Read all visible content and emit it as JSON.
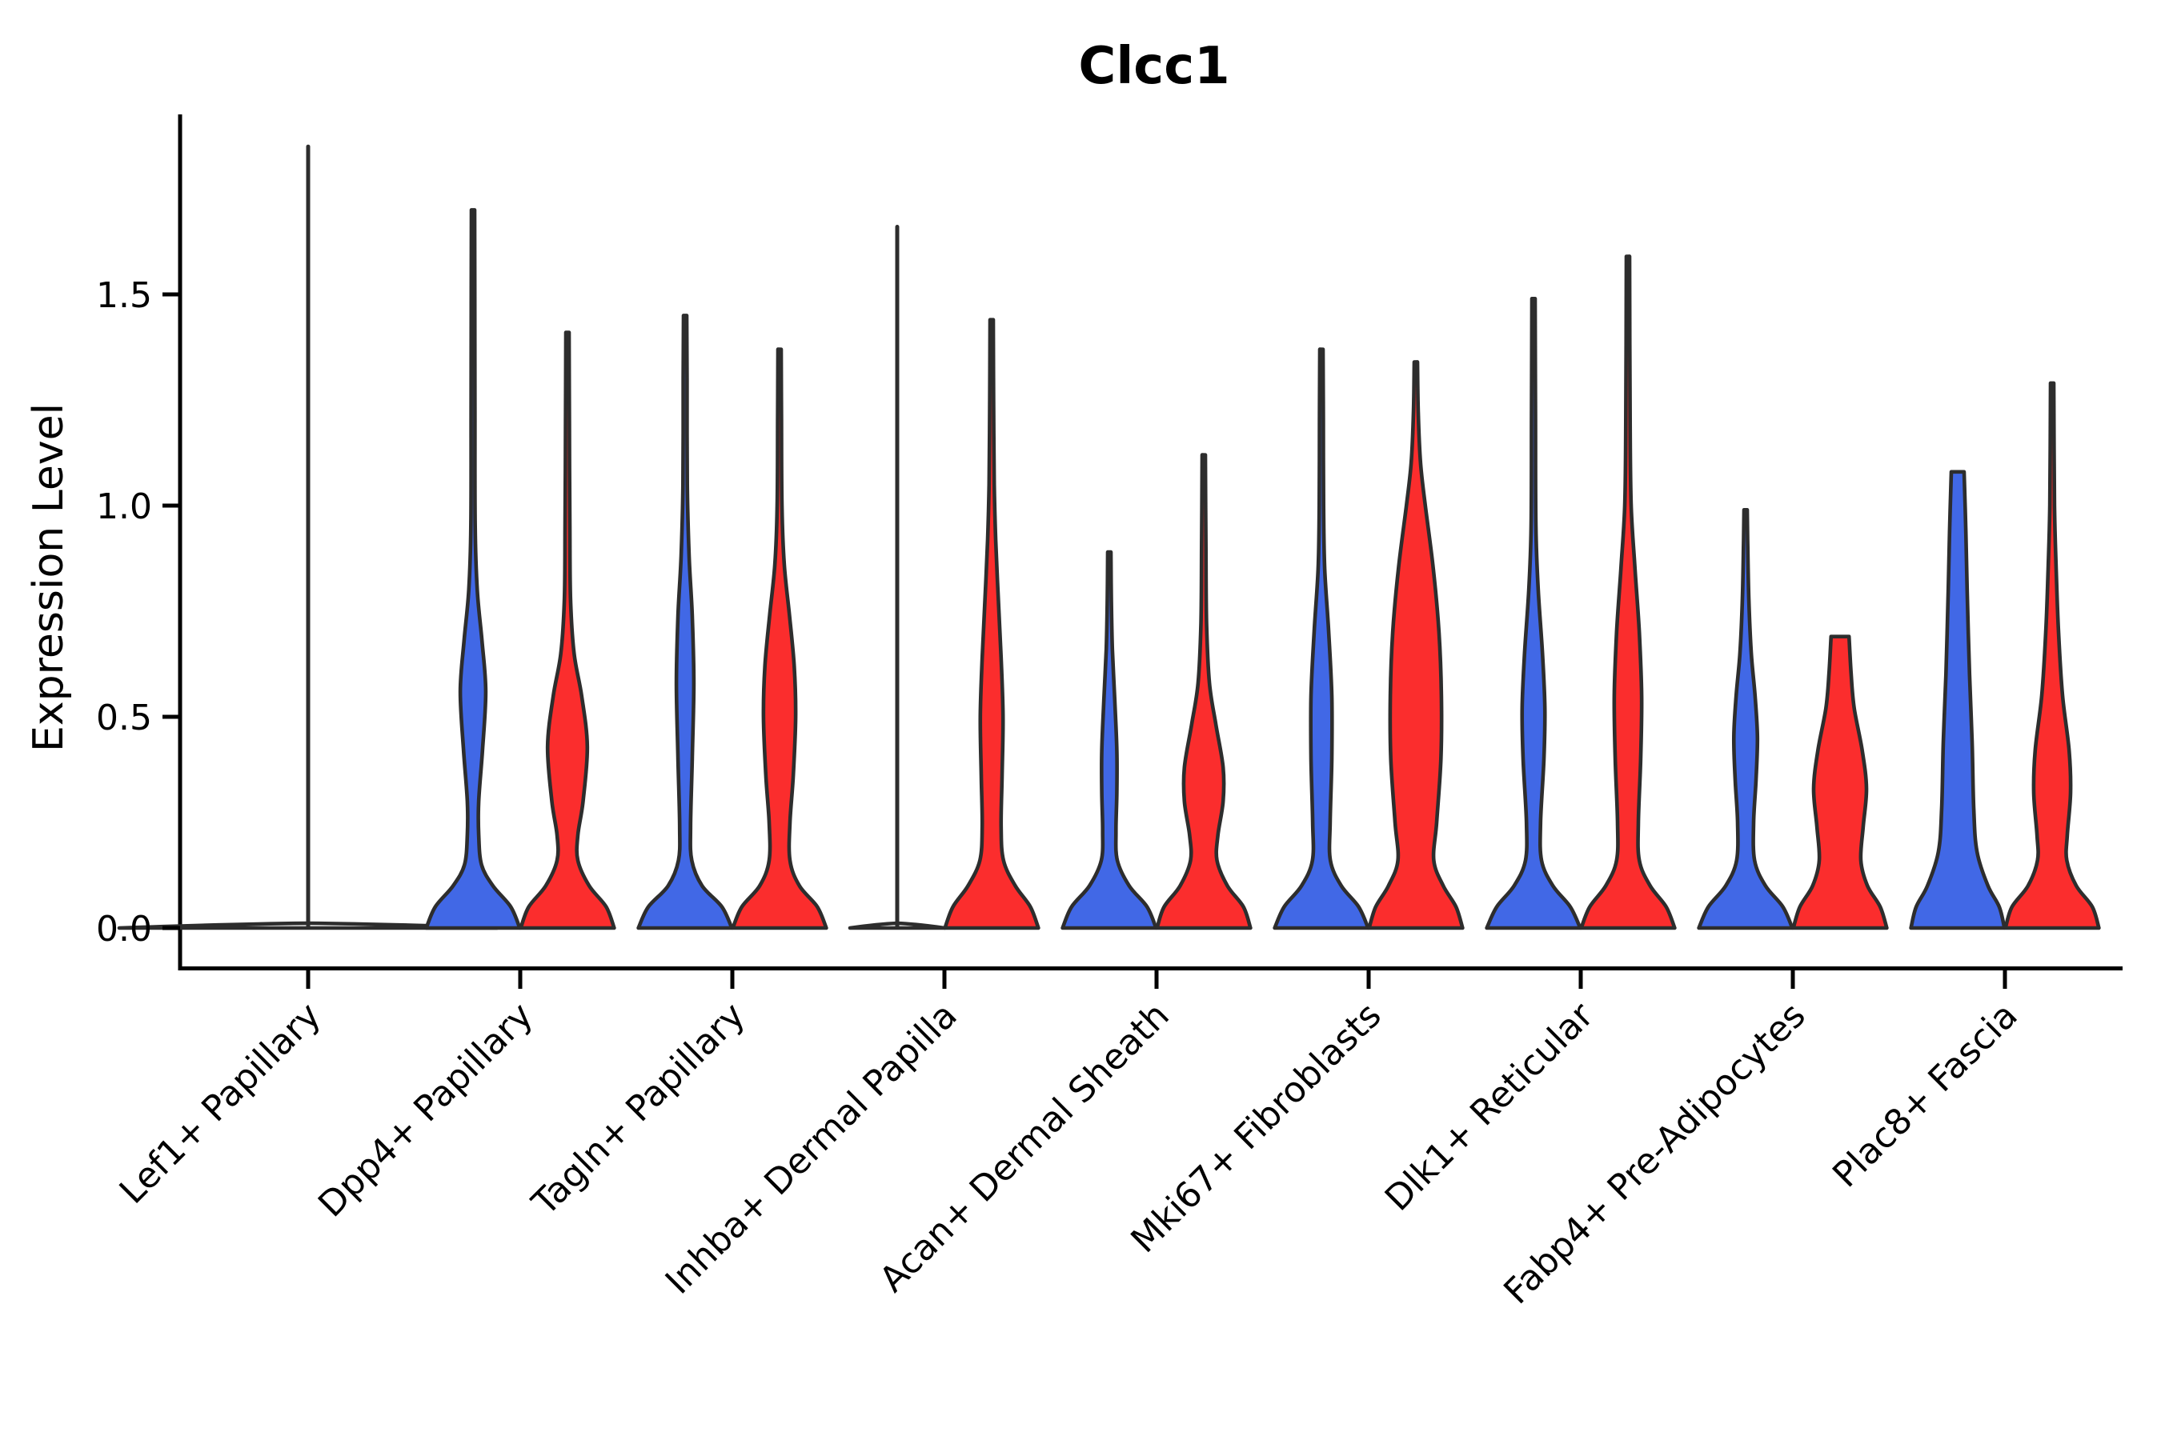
{
  "title": "Clcc1",
  "y_axis": {
    "label": "Expression Level",
    "tick_labels": [
      "0.0",
      "0.5",
      "1.0",
      "1.5"
    ]
  },
  "chart_data": {
    "type": "violin",
    "title": "Clcc1",
    "ylabel": "Expression Level",
    "xlabel": "",
    "ylim": [
      0,
      1.93
    ],
    "yticks": [
      0,
      0.5,
      1.0,
      1.5
    ],
    "grid": "off",
    "legend": "none",
    "violins_per_group": 2,
    "condition_colors": [
      "#4168E6",
      "#FB2D2D"
    ],
    "outline_color": "#2D2D2D",
    "axis_color": "#000000",
    "categories": [
      "Lef1+ Papillary",
      "Dpp4+ Papillary",
      "Tagln+ Papillary",
      "Inhba+ Dermal Papilla",
      "Acan+ Dermal Sheath",
      "Mki67+ Fibroblasts",
      "Dlk1+ Reticular",
      "Fabp4+ Pre-Adipocytes",
      "Plac8+ Fascia"
    ],
    "groups": [
      {
        "category": "Lef1+ Papillary",
        "violins": [
          {
            "fill": "none",
            "flat": true,
            "width_scale": 2.0,
            "spike_max": 1.85
          }
        ]
      },
      {
        "category": "Dpp4+ Papillary",
        "violins": [
          {
            "fill": "#4168E6",
            "max": 1.7,
            "profile": [
              [
                0,
                0.99
              ],
              [
                0.05,
                0.8
              ],
              [
                0.1,
                0.42
              ],
              [
                0.15,
                0.18
              ],
              [
                0.22,
                0.12
              ],
              [
                0.3,
                0.12
              ],
              [
                0.42,
                0.2
              ],
              [
                0.56,
                0.27
              ],
              [
                0.68,
                0.19
              ],
              [
                0.8,
                0.09
              ],
              [
                0.95,
                0.045
              ],
              [
                1.2,
                0.04
              ],
              [
                1.5,
                0.038
              ],
              [
                1.7,
                0.034
              ]
            ]
          },
          {
            "fill": "#FB2D2D",
            "max": 1.41,
            "profile": [
              [
                0,
                0.99
              ],
              [
                0.05,
                0.82
              ],
              [
                0.1,
                0.46
              ],
              [
                0.16,
                0.22
              ],
              [
                0.22,
                0.22
              ],
              [
                0.3,
                0.33
              ],
              [
                0.43,
                0.42
              ],
              [
                0.55,
                0.3
              ],
              [
                0.65,
                0.14
              ],
              [
                0.78,
                0.065
              ],
              [
                0.95,
                0.05
              ],
              [
                1.2,
                0.04
              ],
              [
                1.41,
                0.034
              ]
            ]
          }
        ]
      },
      {
        "category": "Tagln+ Papillary",
        "violins": [
          {
            "fill": "#4168E6",
            "max": 1.45,
            "profile": [
              [
                0,
                0.99
              ],
              [
                0.05,
                0.78
              ],
              [
                0.1,
                0.36
              ],
              [
                0.16,
                0.14
              ],
              [
                0.24,
                0.115
              ],
              [
                0.4,
                0.15
              ],
              [
                0.58,
                0.185
              ],
              [
                0.74,
                0.15
              ],
              [
                0.88,
                0.085
              ],
              [
                1.05,
                0.045
              ],
              [
                1.3,
                0.04
              ],
              [
                1.45,
                0.034
              ]
            ]
          },
          {
            "fill": "#FB2D2D",
            "max": 1.37,
            "profile": [
              [
                0,
                0.99
              ],
              [
                0.05,
                0.8
              ],
              [
                0.1,
                0.42
              ],
              [
                0.16,
                0.22
              ],
              [
                0.25,
                0.22
              ],
              [
                0.36,
                0.29
              ],
              [
                0.5,
                0.34
              ],
              [
                0.62,
                0.31
              ],
              [
                0.74,
                0.21
              ],
              [
                0.86,
                0.1
              ],
              [
                1.0,
                0.05
              ],
              [
                1.2,
                0.04
              ],
              [
                1.37,
                0.034
              ]
            ]
          }
        ]
      },
      {
        "category": "Inhba+ Dermal Papilla",
        "violins": [
          {
            "fill": "none",
            "flat": true,
            "width_scale": 1.0,
            "spike_max": 1.66
          },
          {
            "fill": "#FB2D2D",
            "max": 1.44,
            "profile": [
              [
                0,
                0.99
              ],
              [
                0.05,
                0.82
              ],
              [
                0.1,
                0.5
              ],
              [
                0.16,
                0.25
              ],
              [
                0.24,
                0.2
              ],
              [
                0.36,
                0.22
              ],
              [
                0.5,
                0.24
              ],
              [
                0.64,
                0.2
              ],
              [
                0.78,
                0.14
              ],
              [
                0.92,
                0.085
              ],
              [
                1.05,
                0.055
              ],
              [
                1.25,
                0.04
              ],
              [
                1.44,
                0.034
              ]
            ]
          }
        ]
      },
      {
        "category": "Acan+ Dermal Sheath",
        "violins": [
          {
            "fill": "#4168E6",
            "max": 0.89,
            "profile": [
              [
                0,
                0.99
              ],
              [
                0.05,
                0.8
              ],
              [
                0.1,
                0.42
              ],
              [
                0.16,
                0.17
              ],
              [
                0.23,
                0.14
              ],
              [
                0.32,
                0.16
              ],
              [
                0.42,
                0.16
              ],
              [
                0.54,
                0.115
              ],
              [
                0.66,
                0.065
              ],
              [
                0.78,
                0.042
              ],
              [
                0.89,
                0.034
              ]
            ]
          },
          {
            "fill": "#FB2D2D",
            "max": 1.12,
            "profile": [
              [
                0,
                0.99
              ],
              [
                0.05,
                0.84
              ],
              [
                0.1,
                0.5
              ],
              [
                0.16,
                0.28
              ],
              [
                0.22,
                0.3
              ],
              [
                0.3,
                0.41
              ],
              [
                0.38,
                0.41
              ],
              [
                0.48,
                0.26
              ],
              [
                0.58,
                0.12
              ],
              [
                0.72,
                0.06
              ],
              [
                0.9,
                0.045
              ],
              [
                1.12,
                0.034
              ]
            ]
          }
        ]
      },
      {
        "category": "Mki67+ Fibroblasts",
        "violins": [
          {
            "fill": "#4168E6",
            "max": 1.37,
            "profile": [
              [
                0,
                0.99
              ],
              [
                0.05,
                0.79
              ],
              [
                0.1,
                0.42
              ],
              [
                0.16,
                0.19
              ],
              [
                0.25,
                0.185
              ],
              [
                0.4,
                0.22
              ],
              [
                0.55,
                0.22
              ],
              [
                0.7,
                0.155
              ],
              [
                0.85,
                0.07
              ],
              [
                1.0,
                0.045
              ],
              [
                1.2,
                0.04
              ],
              [
                1.37,
                0.034
              ]
            ]
          },
          {
            "fill": "#FB2D2D",
            "max": 1.34,
            "profile": [
              [
                0,
                0.99
              ],
              [
                0.05,
                0.85
              ],
              [
                0.1,
                0.58
              ],
              [
                0.16,
                0.38
              ],
              [
                0.25,
                0.44
              ],
              [
                0.4,
                0.53
              ],
              [
                0.55,
                0.54
              ],
              [
                0.7,
                0.49
              ],
              [
                0.85,
                0.37
              ],
              [
                1.0,
                0.2
              ],
              [
                1.1,
                0.1
              ],
              [
                1.22,
                0.05
              ],
              [
                1.34,
                0.034
              ]
            ]
          }
        ]
      },
      {
        "category": "Dlk1+ Reticular",
        "violins": [
          {
            "fill": "#4168E6",
            "max": 1.49,
            "profile": [
              [
                0,
                0.99
              ],
              [
                0.05,
                0.78
              ],
              [
                0.1,
                0.41
              ],
              [
                0.16,
                0.17
              ],
              [
                0.25,
                0.15
              ],
              [
                0.4,
                0.22
              ],
              [
                0.52,
                0.24
              ],
              [
                0.65,
                0.19
              ],
              [
                0.8,
                0.1
              ],
              [
                0.95,
                0.05
              ],
              [
                1.2,
                0.042
              ],
              [
                1.49,
                0.034
              ]
            ]
          },
          {
            "fill": "#FB2D2D",
            "max": 1.59,
            "profile": [
              [
                0,
                0.99
              ],
              [
                0.05,
                0.81
              ],
              [
                0.1,
                0.47
              ],
              [
                0.16,
                0.24
              ],
              [
                0.25,
                0.22
              ],
              [
                0.4,
                0.27
              ],
              [
                0.55,
                0.29
              ],
              [
                0.7,
                0.24
              ],
              [
                0.85,
                0.15
              ],
              [
                1.0,
                0.068
              ],
              [
                1.2,
                0.045
              ],
              [
                1.59,
                0.034
              ]
            ]
          }
        ]
      },
      {
        "category": "Fabp4+ Pre-Adipocytes",
        "violins": [
          {
            "fill": "#4168E6",
            "max": 0.99,
            "profile": [
              [
                0,
                0.99
              ],
              [
                0.05,
                0.79
              ],
              [
                0.1,
                0.42
              ],
              [
                0.16,
                0.19
              ],
              [
                0.25,
                0.17
              ],
              [
                0.35,
                0.22
              ],
              [
                0.45,
                0.25
              ],
              [
                0.55,
                0.2
              ],
              [
                0.65,
                0.12
              ],
              [
                0.78,
                0.068
              ],
              [
                0.9,
                0.045
              ],
              [
                0.99,
                0.034
              ]
            ]
          },
          {
            "fill": "#FB2D2D",
            "max": 0.69,
            "blunt": true,
            "profile": [
              [
                0,
                0.99
              ],
              [
                0.05,
                0.85
              ],
              [
                0.1,
                0.58
              ],
              [
                0.16,
                0.44
              ],
              [
                0.24,
                0.49
              ],
              [
                0.33,
                0.56
              ],
              [
                0.42,
                0.47
              ],
              [
                0.52,
                0.3
              ],
              [
                0.6,
                0.235
              ],
              [
                0.69,
                0.19
              ]
            ]
          }
        ]
      },
      {
        "category": "Plac8+ Fascia",
        "violins": [
          {
            "fill": "#4168E6",
            "max": 1.08,
            "blunt": true,
            "profile": [
              [
                0,
                0.99
              ],
              [
                0.05,
                0.88
              ],
              [
                0.1,
                0.64
              ],
              [
                0.18,
                0.41
              ],
              [
                0.28,
                0.34
              ],
              [
                0.44,
                0.305
              ],
              [
                0.6,
                0.25
              ],
              [
                0.8,
                0.2
              ],
              [
                0.95,
                0.17
              ],
              [
                1.08,
                0.135
              ]
            ]
          },
          {
            "fill": "#FB2D2D",
            "max": 1.29,
            "profile": [
              [
                0,
                0.99
              ],
              [
                0.05,
                0.85
              ],
              [
                0.1,
                0.51
              ],
              [
                0.16,
                0.31
              ],
              [
                0.22,
                0.32
              ],
              [
                0.32,
                0.39
              ],
              [
                0.42,
                0.36
              ],
              [
                0.55,
                0.22
              ],
              [
                0.7,
                0.135
              ],
              [
                0.85,
                0.085
              ],
              [
                1.0,
                0.05
              ],
              [
                1.29,
                0.034
              ]
            ]
          }
        ]
      }
    ]
  }
}
